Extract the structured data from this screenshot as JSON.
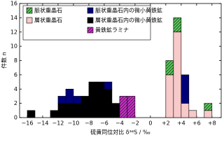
{
  "chart_data": {
    "type": "stacked_histogram",
    "xlabel": "硫黄同位対比 δ³⁴S / ‰",
    "ylabel": "件数 n",
    "bins": [
      -17,
      -16,
      -15,
      -14,
      -13,
      -12,
      -11,
      -10,
      -9,
      -8,
      -7,
      -6,
      -5,
      -4,
      -3,
      -2,
      -1,
      0,
      1,
      2,
      3,
      4,
      5,
      6,
      7,
      8,
      9
    ],
    "series": [
      {
        "name": "脈状重晶石",
        "color": "#5ccc5c",
        "hatch": true,
        "values": [
          0,
          0,
          0,
          0,
          0,
          0,
          0,
          0,
          0,
          0,
          0,
          0,
          0,
          0,
          0,
          0,
          0,
          0,
          0,
          2,
          2,
          0,
          0,
          0,
          1,
          0
        ]
      },
      {
        "name": "脈状重晶石内の微小黄鉄鉱",
        "color": "#00007a",
        "hatch": false,
        "values": [
          0,
          0,
          0,
          0,
          0,
          1,
          2,
          1,
          0,
          0,
          0,
          1,
          0,
          0,
          0,
          0,
          0,
          0,
          0,
          0,
          0,
          4,
          0,
          0,
          0,
          0
        ]
      },
      {
        "name": "層状重晶石",
        "color": "#f7c9c9",
        "hatch": false,
        "values": [
          0,
          0,
          0,
          0,
          0,
          0,
          0,
          0,
          0,
          0,
          0,
          0,
          0,
          0,
          0,
          0,
          0,
          0,
          0,
          6,
          12,
          2,
          1,
          0,
          1,
          0
        ]
      },
      {
        "name": "層状重晶石内の微小黄鉄鉱",
        "color": "#000000",
        "hatch": false,
        "values": [
          0,
          1,
          0,
          0,
          1,
          2,
          2,
          2,
          3,
          5,
          5,
          4,
          2,
          0,
          0,
          0,
          0,
          0,
          0,
          0,
          0,
          0,
          0,
          0,
          0,
          0
        ]
      },
      {
        "name": "黄鉄鉱ラミナ",
        "color": "#cc33cc",
        "hatch": true,
        "values": [
          0,
          0,
          0,
          0,
          0,
          0,
          0,
          0,
          0,
          0,
          0,
          0,
          0,
          3,
          3,
          0,
          0,
          0,
          0,
          0,
          0,
          0,
          0,
          0,
          0,
          0
        ]
      }
    ],
    "xlim": [
      -17,
      9.2
    ],
    "ylim": [
      0,
      16
    ],
    "xticks": [
      {
        "value": -16,
        "label": "−16"
      },
      {
        "value": -14,
        "label": "−14"
      },
      {
        "value": -12,
        "label": "−12"
      },
      {
        "value": -10,
        "label": "−10"
      },
      {
        "value": -8,
        "label": "−8"
      },
      {
        "value": -6,
        "label": "−6"
      },
      {
        "value": -4,
        "label": "−4"
      },
      {
        "value": -2,
        "label": "−2"
      },
      0,
      {
        "value": 2,
        "label": "+2"
      },
      {
        "value": 4,
        "label": "+4"
      },
      {
        "value": 6,
        "label": "+6"
      },
      {
        "value": 8,
        "label": "+8"
      }
    ],
    "yticks": [
      0,
      2,
      4,
      6,
      8,
      10,
      12,
      14,
      16
    ]
  }
}
